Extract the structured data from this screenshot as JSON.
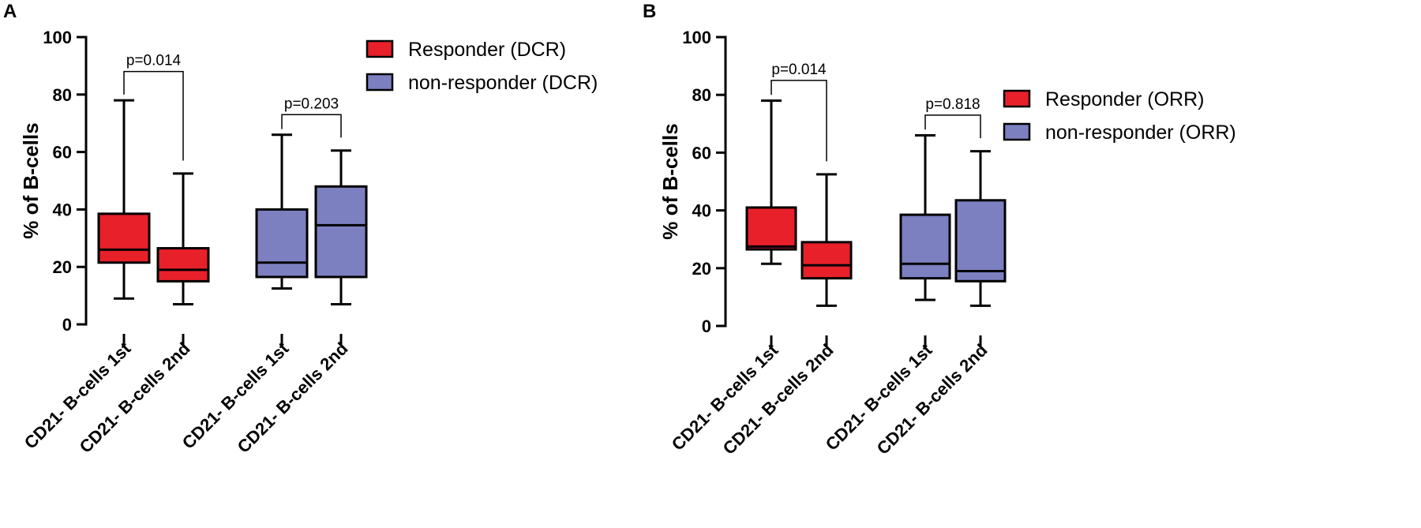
{
  "colors": {
    "responder": "#e8202a",
    "non_responder": "#7c80c0"
  },
  "chart_data": [
    {
      "panel": "A",
      "type": "box",
      "ylabel": "% of B-cells",
      "ylim": [
        0,
        100
      ],
      "yticks": [
        0,
        20,
        40,
        60,
        80,
        100
      ],
      "categories": [
        "CD21- B-cells 1st",
        "CD21- B-cells 2nd",
        "CD21- B-cells 1st",
        "CD21- B-cells 2nd"
      ],
      "legend": [
        {
          "label": "Responder (DCR)",
          "color_key": "responder"
        },
        {
          "label": "non-responder (DCR)",
          "color_key": "non_responder"
        }
      ],
      "boxes": [
        {
          "group": "responder",
          "min": 9,
          "q1": 21.5,
          "median": 26,
          "q3": 38.5,
          "max": 78
        },
        {
          "group": "responder",
          "min": 7,
          "q1": 15,
          "median": 19,
          "q3": 26.5,
          "max": 52.5
        },
        {
          "group": "non_responder",
          "min": 12.5,
          "q1": 16.5,
          "median": 21.5,
          "q3": 40,
          "max": 66
        },
        {
          "group": "non_responder",
          "min": 7,
          "q1": 16.5,
          "median": 34.5,
          "q3": 48,
          "max": 60.5
        }
      ],
      "comparisons": [
        {
          "from": 0,
          "to": 1,
          "label": "p=0.014",
          "y": 88,
          "from_y": 80,
          "to_y": 57
        },
        {
          "from": 2,
          "to": 3,
          "label": "p=0.203",
          "y": 73,
          "from_y": 68,
          "to_y": 65
        }
      ]
    },
    {
      "panel": "B",
      "type": "box",
      "ylabel": "% of B-cells",
      "ylim": [
        0,
        100
      ],
      "yticks": [
        0,
        20,
        40,
        60,
        80,
        100
      ],
      "categories": [
        "CD21- B-cells 1st",
        "CD21- B-cells 2nd",
        "CD21- B-cells 1st",
        "CD21- B-cells 2nd"
      ],
      "legend": [
        {
          "label": "Responder (ORR)",
          "color_key": "responder"
        },
        {
          "label": "non-responder (ORR)",
          "color_key": "non_responder"
        }
      ],
      "boxes": [
        {
          "group": "responder",
          "min": 21.5,
          "q1": 26.5,
          "median": 27.5,
          "q3": 41,
          "max": 78
        },
        {
          "group": "responder",
          "min": 7,
          "q1": 16.5,
          "median": 21,
          "q3": 29,
          "max": 52.5
        },
        {
          "group": "non_responder",
          "min": 9,
          "q1": 16.5,
          "median": 21.5,
          "q3": 38.5,
          "max": 66
        },
        {
          "group": "non_responder",
          "min": 7,
          "q1": 15.5,
          "median": 19,
          "q3": 43.5,
          "max": 60.5
        }
      ],
      "comparisons": [
        {
          "from": 0,
          "to": 1,
          "label": "p=0.014",
          "y": 85,
          "from_y": 80,
          "to_y": 57
        },
        {
          "from": 2,
          "to": 3,
          "label": "p=0.818",
          "y": 73,
          "from_y": 68,
          "to_y": 65
        }
      ]
    }
  ]
}
